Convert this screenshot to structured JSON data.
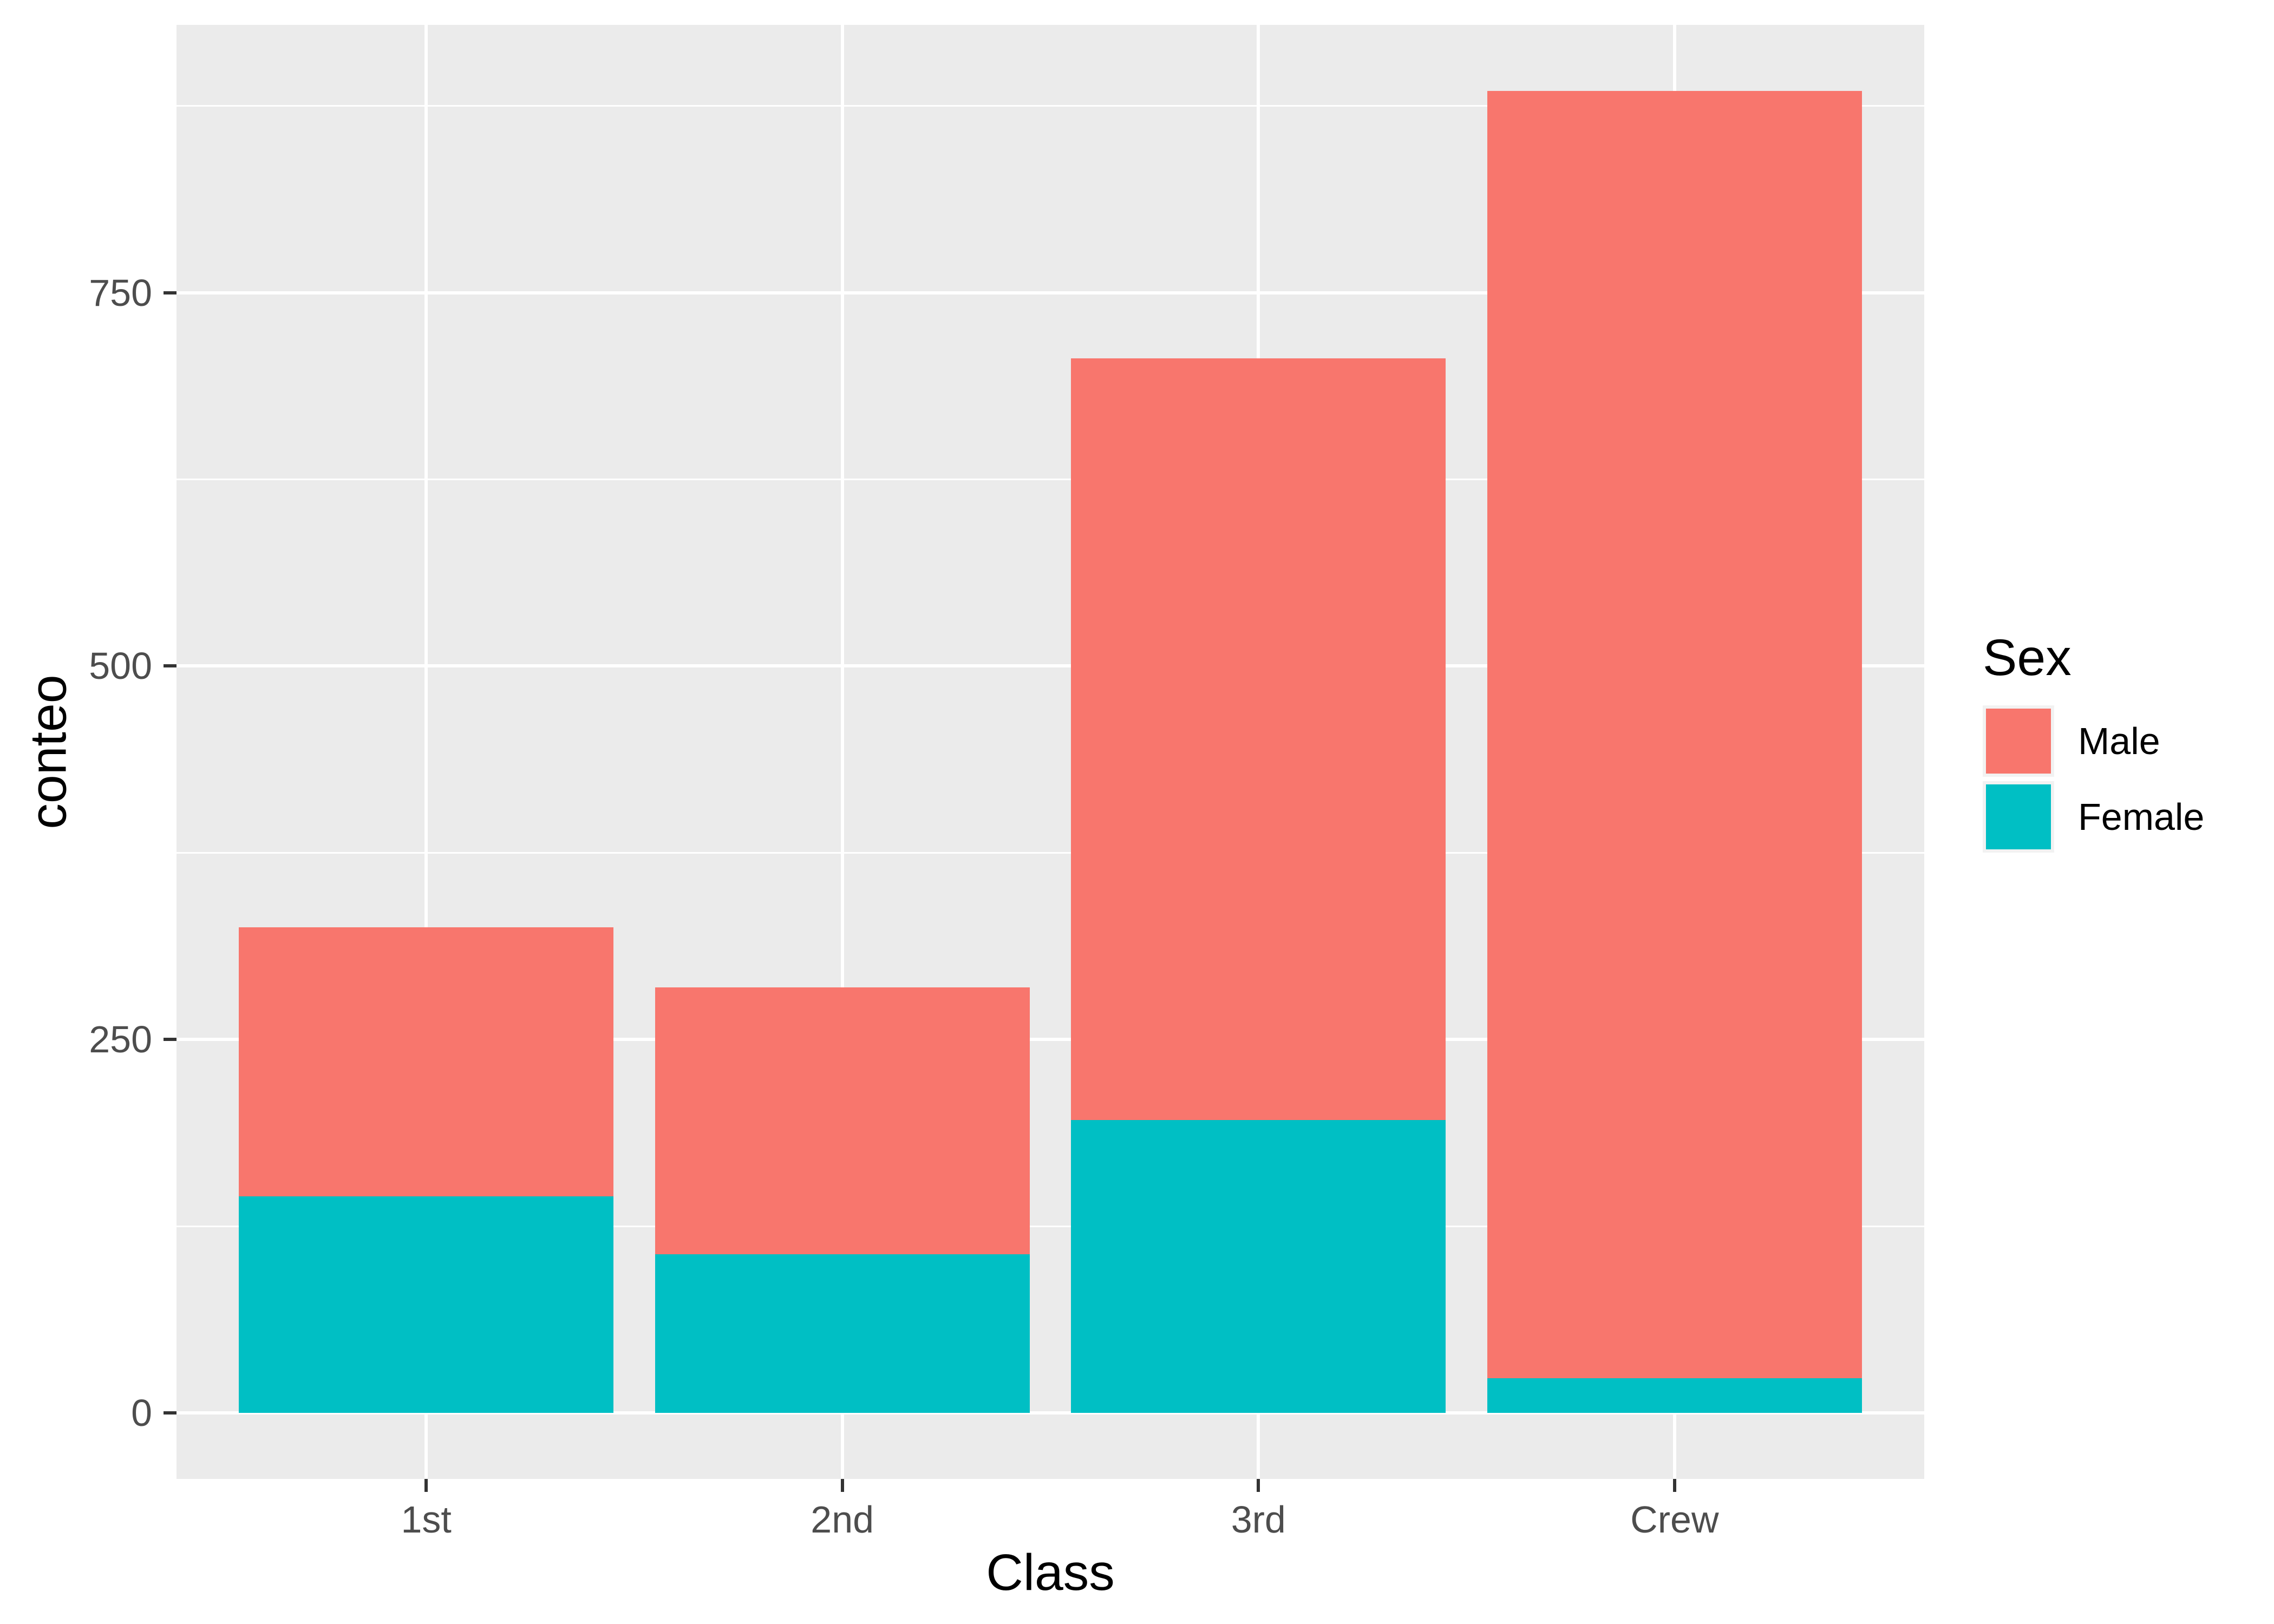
{
  "chart_data": {
    "type": "bar",
    "stacked": true,
    "title": "",
    "xlabel": "Class",
    "ylabel": "conteo",
    "categories": [
      "1st",
      "2nd",
      "3rd",
      "Crew"
    ],
    "series": [
      {
        "name": "Male",
        "color": "#F8766D",
        "values": [
          180,
          179,
          510,
          862
        ]
      },
      {
        "name": "Female",
        "color": "#00BFC4",
        "values": [
          145,
          106,
          196,
          23
        ]
      }
    ],
    "stack_order_bottom_to_top": [
      "Female",
      "Male"
    ],
    "stack_totals": [
      325,
      285,
      706,
      885
    ],
    "y_major_ticks": [
      0,
      250,
      500,
      750
    ],
    "y_minor_gridlines": [
      125,
      375,
      625,
      875
    ],
    "ylim": [
      -44.25,
      929.25
    ],
    "x_domain": [
      0.4,
      4.6
    ],
    "bar_width": 0.9,
    "grid": true,
    "legend": {
      "title": "Sex",
      "position": "right",
      "entries": [
        {
          "label": "Male",
          "color": "#F8766D"
        },
        {
          "label": "Female",
          "color": "#00BFC4"
        }
      ]
    },
    "colors": {
      "background": "#FFFFFF",
      "panel_bg": "#EBEBEB",
      "grid": "#FFFFFF",
      "tick": "#333333",
      "tick_label": "#4D4D4D",
      "axis_title": "#000000",
      "legend_text": "#000000",
      "legend_key_bg": "#F2F2F2"
    }
  }
}
